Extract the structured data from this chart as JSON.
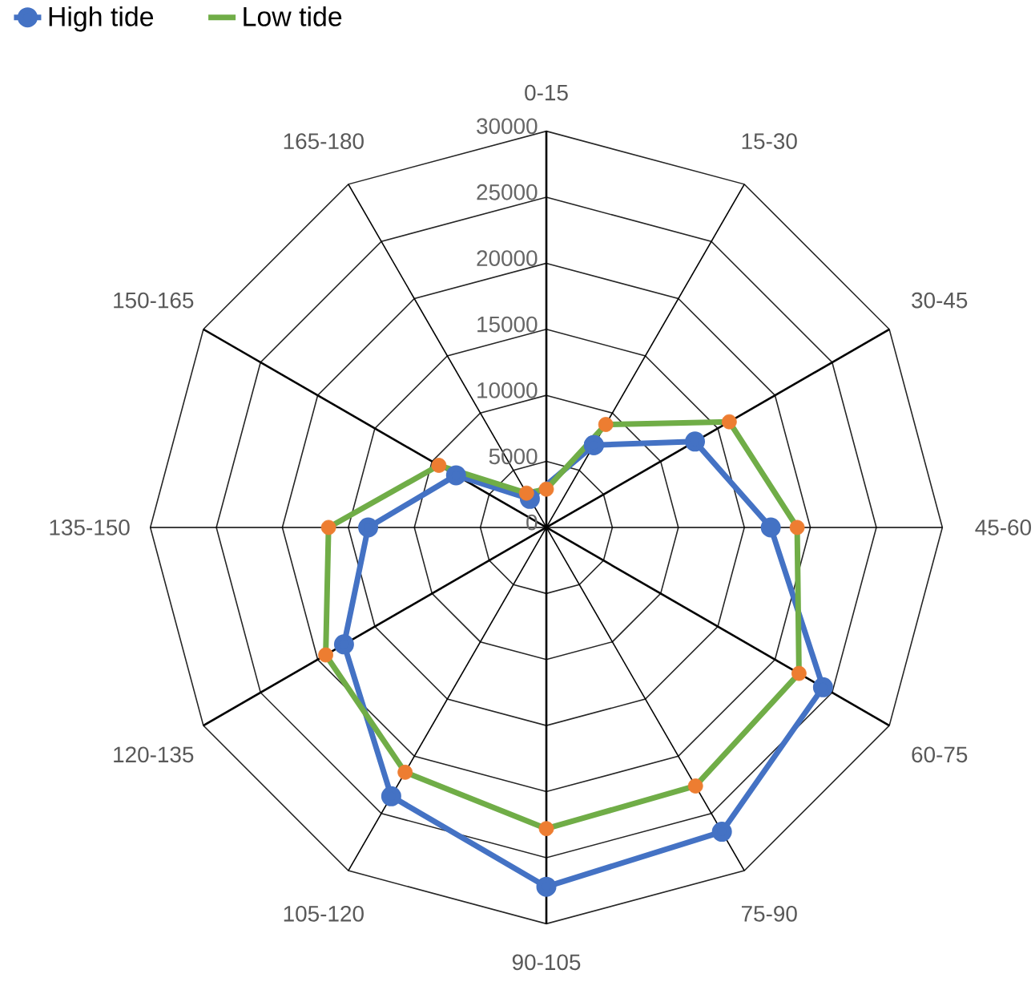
{
  "chart_data": {
    "type": "radar",
    "categories": [
      "0-15",
      "15-30",
      "30-45",
      "45-60",
      "60-75",
      "75-90",
      "90-105",
      "105-120",
      "120-135",
      "135-150",
      "150-165",
      "165-180"
    ],
    "series": [
      {
        "name": "High tide",
        "color": "#4472c4",
        "values": [
          null,
          7200,
          13000,
          17000,
          24200,
          26600,
          27200,
          23500,
          17700,
          13500,
          7900,
          2500
        ]
      },
      {
        "name": "Low tide",
        "color": "#70ad47",
        "colors": [
          "#ed7d31",
          "#ed7d31",
          "#ed7d31",
          "#ed7d31",
          "#ed7d31",
          "#ed7d31",
          "#ed7d31",
          "#ed7d31",
          "#ed7d31",
          "#ed7d31",
          "#ed7d31",
          "#ed7d31"
        ],
        "values": [
          2900,
          9000,
          16000,
          19000,
          22100,
          22600,
          22800,
          21400,
          19300,
          16500,
          9400,
          3000
        ]
      }
    ],
    "ylim": [
      0,
      30000
    ],
    "yticks": [
      0,
      5000,
      10000,
      15000,
      20000,
      25000,
      30000
    ],
    "grid": true,
    "legend": "top left",
    "marker": "circle",
    "line_style": "solid"
  }
}
